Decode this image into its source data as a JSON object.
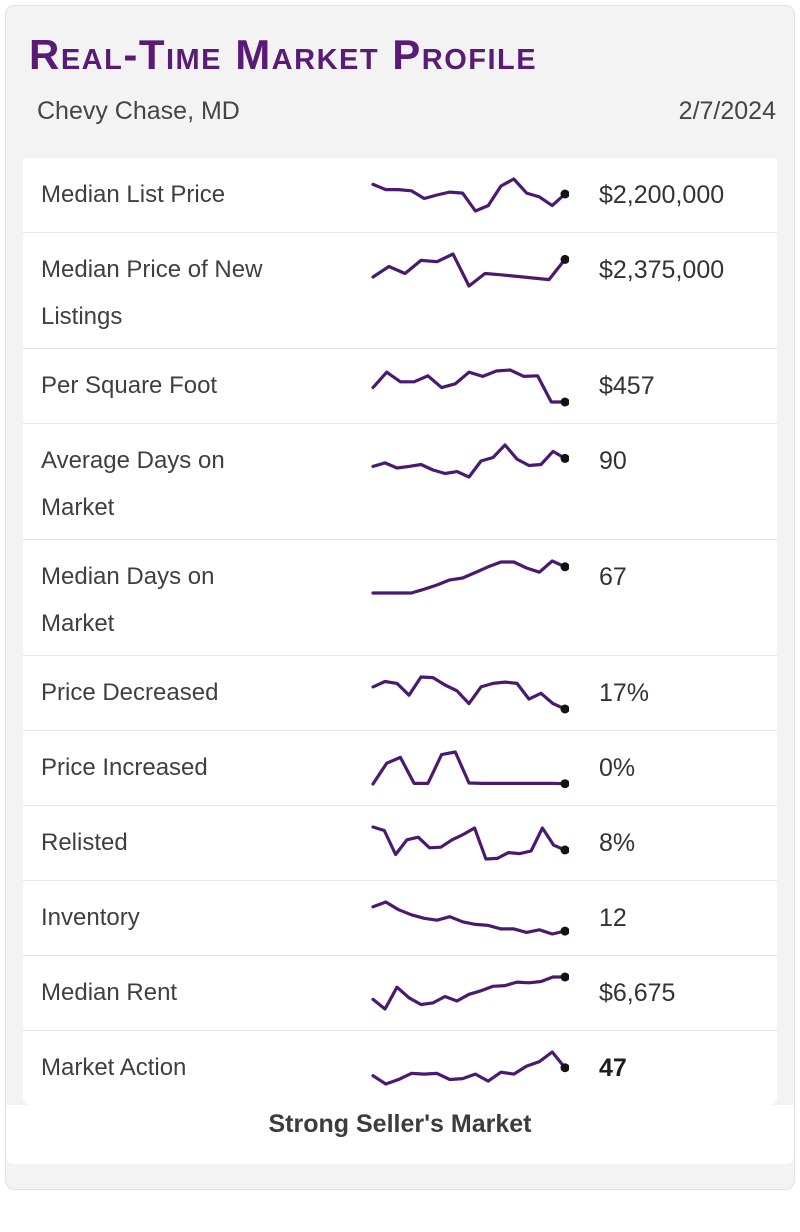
{
  "header": {
    "title": "Real-Time Market Profile",
    "location": "Chevy Chase, MD",
    "date": "2/7/2024"
  },
  "footer": {
    "market_status": "Strong Seller's Market"
  },
  "colors": {
    "accent_purple": "#5a1a78",
    "sparkline_purple": "#4a1a70",
    "dot_black": "#131313",
    "container_bg": "#f3f3f4",
    "container_border": "#e1e1e4",
    "divider": "#e6e6e8"
  },
  "chart_data": [
    {
      "type": "line",
      "name": "Median List Price",
      "current_value": "$2,200,000",
      "value_bold": false,
      "y_relative": [
        83,
        67,
        67,
        63,
        39,
        50,
        59,
        56,
        0,
        17,
        78,
        100,
        56,
        44,
        17,
        53
      ],
      "note": "sparkline, unlabeled axes, y values are relative 0-100 estimates, endpoint marked with dot"
    },
    {
      "type": "line",
      "name": "Median Price of New Listings",
      "current_value": "$2,375,000",
      "value_bold": false,
      "y_relative": [
        28,
        61,
        39,
        80,
        76,
        100,
        0,
        39,
        35,
        30,
        25,
        20,
        83
      ],
      "note": "sparkline, relative scale"
    },
    {
      "type": "line",
      "name": "Per Square Foot",
      "current_value": "$457",
      "value_bold": false,
      "y_relative": [
        45,
        93,
        63,
        63,
        82,
        45,
        57,
        93,
        80,
        97,
        100,
        80,
        82,
        0,
        0
      ],
      "note": "sparkline, relative scale"
    },
    {
      "type": "line",
      "name": "Average Days on Market",
      "current_value": "90",
      "value_bold": false,
      "y_relative": [
        33,
        44,
        28,
        33,
        39,
        22,
        11,
        17,
        0,
        50,
        61,
        100,
        56,
        36,
        39,
        80,
        58
      ],
      "note": "sparkline, relative scale"
    },
    {
      "type": "line",
      "name": "Median Days on Market",
      "current_value": "67",
      "value_bold": false,
      "y_relative": [
        0,
        0,
        0,
        0,
        12,
        25,
        41,
        47,
        64,
        82,
        97,
        97,
        78,
        65,
        100,
        82
      ],
      "note": "sparkline, relative scale"
    },
    {
      "type": "line",
      "name": "Price Decreased",
      "current_value": "17%",
      "value_bold": false,
      "y_relative": [
        69,
        86,
        80,
        43,
        100,
        98,
        75,
        57,
        17,
        69,
        80,
        84,
        80,
        31,
        49,
        17,
        0
      ],
      "note": "sparkline, relative scale"
    },
    {
      "type": "line",
      "name": "Price Increased",
      "current_value": "0%",
      "value_bold": false,
      "y_relative": [
        0,
        65,
        83,
        2,
        2,
        92,
        100,
        3,
        2,
        2,
        2,
        2,
        2,
        2,
        1
      ],
      "note": "sparkline, relative scale, flat at zero for recent periods"
    },
    {
      "type": "line",
      "name": "Relisted",
      "current_value": "8%",
      "value_bold": false,
      "y_relative": [
        100,
        89,
        14,
        60,
        68,
        35,
        37,
        60,
        77,
        97,
        0,
        2,
        20,
        17,
        25,
        97,
        43,
        28
      ],
      "note": "sparkline, relative scale"
    },
    {
      "type": "line",
      "name": "Inventory",
      "current_value": "12",
      "value_bold": false,
      "y_relative": [
        85,
        100,
        76,
        60,
        49,
        43,
        54,
        38,
        30,
        27,
        16,
        16,
        5,
        13,
        0,
        9
      ],
      "note": "sparkline, relative scale, declining trend"
    },
    {
      "type": "line",
      "name": "Median Rent",
      "current_value": "$6,675",
      "value_bold": false,
      "y_relative": [
        30,
        0,
        68,
        35,
        14,
        19,
        39,
        25,
        46,
        57,
        71,
        73,
        84,
        82,
        86,
        100,
        100
      ],
      "note": "sparkline, relative scale, rising trend"
    },
    {
      "type": "line",
      "name": "Market Action",
      "current_value": "47",
      "value_bold": true,
      "y_relative": [
        26,
        0,
        14,
        33,
        31,
        33,
        14,
        17,
        31,
        9,
        37,
        31,
        56,
        70,
        100,
        51
      ],
      "note": "sparkline, relative scale"
    }
  ]
}
